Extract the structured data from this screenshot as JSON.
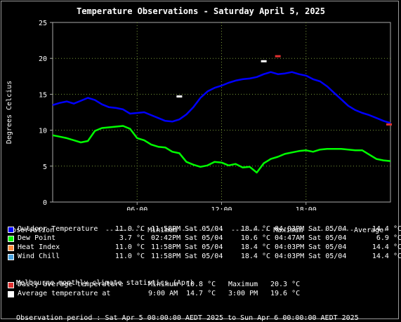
{
  "chart_data": {
    "type": "line",
    "title": "Temperature Observations - Saturday April 5, 2025",
    "ylabel": "Degrees Celcius",
    "xlabel": "",
    "xlim": [
      0,
      24
    ],
    "ylim": [
      0,
      25
    ],
    "xticks": [
      "06:00",
      "12:00",
      "18:00"
    ],
    "xtick_values": [
      6,
      12,
      18
    ],
    "yticks": [
      0,
      5,
      10,
      15,
      20,
      25
    ],
    "grid": true,
    "series": [
      {
        "name": "Outdoor Temperature",
        "color": "#0000ff",
        "x": [
          0,
          0.5,
          1,
          1.5,
          2,
          2.5,
          3,
          3.5,
          4,
          4.5,
          5,
          5.5,
          6,
          6.5,
          7,
          7.5,
          8,
          8.5,
          9,
          9.5,
          10,
          10.5,
          11,
          11.5,
          12,
          12.5,
          13,
          13.5,
          14,
          14.5,
          15,
          15.5,
          16,
          16.5,
          17,
          17.5,
          18,
          18.5,
          19,
          19.5,
          20,
          20.5,
          21,
          21.5,
          22,
          22.5,
          23,
          23.5,
          24
        ],
        "values": [
          13.5,
          13.8,
          14.0,
          13.7,
          14.1,
          14.5,
          14.2,
          13.6,
          13.2,
          13.1,
          12.9,
          12.3,
          12.4,
          12.5,
          12.1,
          11.7,
          11.3,
          11.2,
          11.5,
          12.2,
          13.2,
          14.5,
          15.4,
          15.9,
          16.2,
          16.6,
          16.9,
          17.1,
          17.2,
          17.4,
          17.8,
          18.1,
          17.8,
          17.9,
          18.1,
          17.8,
          17.6,
          17.1,
          16.8,
          16.1,
          15.2,
          14.3,
          13.4,
          12.8,
          12.4,
          12.1,
          11.7,
          11.3,
          11.0
        ]
      },
      {
        "name": "Dew Point",
        "color": "#00ff00",
        "x": [
          0,
          0.5,
          1,
          1.5,
          2,
          2.5,
          3,
          3.5,
          4,
          4.5,
          5,
          5.5,
          6,
          6.5,
          7,
          7.5,
          8,
          8.5,
          9,
          9.5,
          10,
          10.5,
          11,
          11.5,
          12,
          12.5,
          13,
          13.5,
          14,
          14.5,
          15,
          15.5,
          16,
          16.5,
          17,
          17.5,
          18,
          18.5,
          19,
          19.5,
          20,
          20.5,
          21,
          21.5,
          22,
          22.5,
          23,
          23.5,
          24
        ],
        "values": [
          9.3,
          9.1,
          8.9,
          8.6,
          8.3,
          8.5,
          9.9,
          10.3,
          10.4,
          10.5,
          10.6,
          10.2,
          8.9,
          8.6,
          8.0,
          7.7,
          7.6,
          7.0,
          6.8,
          5.6,
          5.2,
          4.9,
          5.1,
          5.6,
          5.5,
          5.1,
          5.3,
          4.8,
          4.9,
          4.1,
          5.4,
          6.0,
          6.3,
          6.7,
          6.9,
          7.1,
          7.2,
          7.0,
          7.3,
          7.4,
          7.4,
          7.4,
          7.3,
          7.2,
          7.2,
          6.6,
          6.0,
          5.8,
          5.7
        ]
      },
      {
        "name": "Heat Index",
        "color": "#ff8c3c",
        "values": []
      },
      {
        "name": "Wind Chill",
        "color": "#4aa4e0",
        "values": []
      }
    ],
    "markers": [
      {
        "name": "Daily average temperature",
        "color": "#e03030",
        "x": [
          16.0,
          23.9
        ],
        "values": [
          20.3,
          10.8
        ]
      },
      {
        "name": "Average temperature at",
        "color": "#ffffff",
        "x": [
          9.0,
          15.0
        ],
        "values": [
          14.7,
          19.6
        ]
      }
    ]
  },
  "summary": {
    "headers": [
      "Observation",
      "--------- Minimum ----------",
      "--------- Maximum ----------",
      "-Average-"
    ],
    "rows": [
      {
        "name": "Outdoor Temperature",
        "color": "#0000ff",
        "min": "11.0 °C",
        "min_time": "11:58PM Sat 05/04",
        "max": "18.4 °C",
        "max_time": "04:03PM Sat 05/04",
        "avg": "14.4 °C"
      },
      {
        "name": "Dew Point",
        "color": "#00ff00",
        "min": "3.7 °C",
        "min_time": "02:42PM Sat 05/04",
        "max": "10.6 °C",
        "max_time": "04:47AM Sat 05/04",
        "avg": "6.9 °C"
      },
      {
        "name": "Heat Index",
        "color": "#ff8c3c",
        "min": "11.0 °C",
        "min_time": "11:58PM Sat 05/04",
        "max": "18.4 °C",
        "max_time": "04:03PM Sat 05/04",
        "avg": "14.4 °C"
      },
      {
        "name": "Wind Chill",
        "color": "#4aa4e0",
        "min": "11.0 °C",
        "min_time": "11:58PM Sat 05/04",
        "max": "18.4 °C",
        "max_time": "04:03PM Sat 05/04",
        "avg": "14.4 °C"
      }
    ]
  },
  "climate": {
    "heading": "Melbourne monthly climate statistics (Apr)",
    "rows": [
      {
        "label": "Daily average temperature",
        "color": "#e03030",
        "col1_label": "Minimum",
        "col1_value": "10.8 °C",
        "col2_label": "Maximum",
        "col2_value": "20.3 °C"
      },
      {
        "label": "Average temperature at",
        "color": "#ffffff",
        "col1_label": "9:00 AM",
        "col1_value": "14.7 °C",
        "col2_label": "3:00 PM",
        "col2_value": "19.6 °C"
      }
    ]
  },
  "footer": "Observation period : Sat Apr 5 00:00:00 AEDT 2025 to Sun Apr 6 00:00:00 AEDT 2025"
}
